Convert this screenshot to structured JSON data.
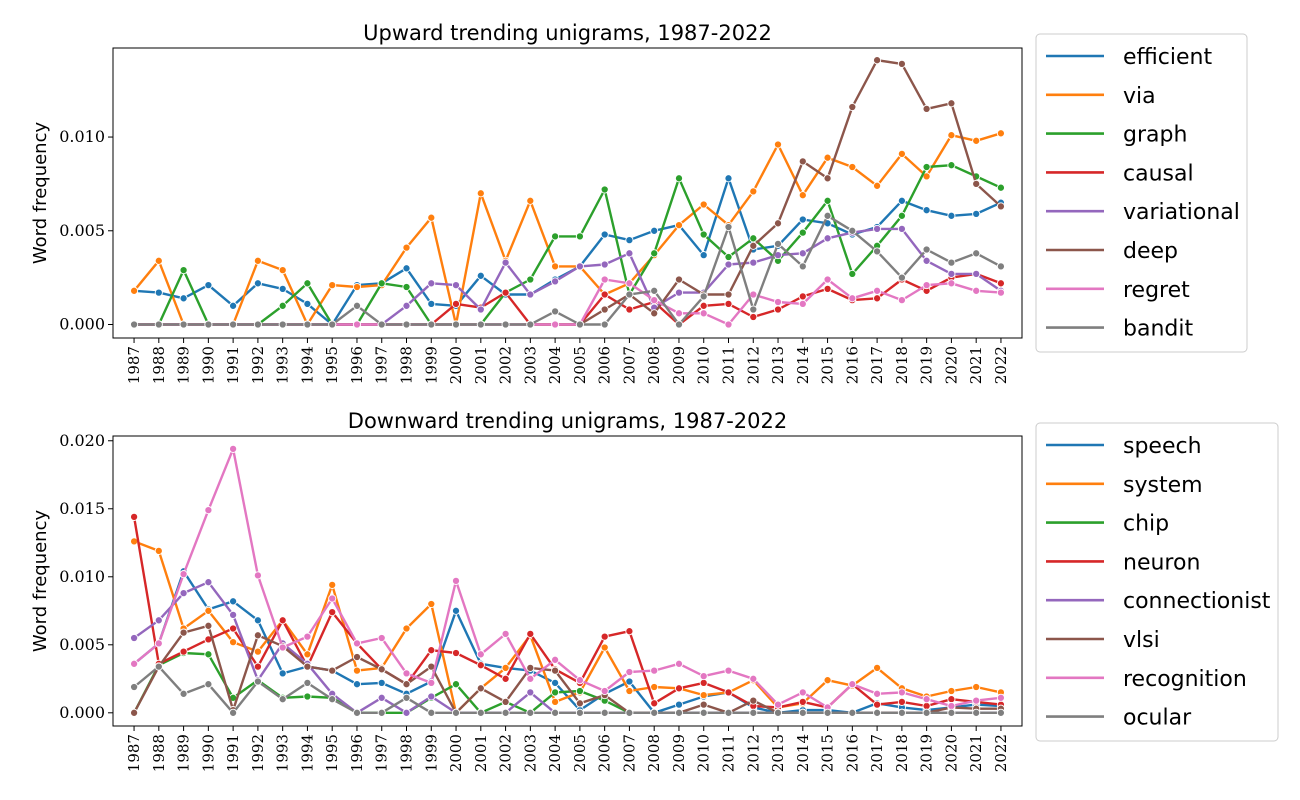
{
  "chart_data": [
    {
      "type": "line",
      "title": "Upward trending unigrams, 1987-2022",
      "xlabel": "",
      "ylabel": "Word frequency",
      "ylim": [
        -0.00072,
        0.01475
      ],
      "yticks": [
        0.0,
        0.005,
        0.01
      ],
      "ytick_labels": [
        "0.000",
        "0.005",
        "0.010"
      ],
      "legend_position": "outside-right",
      "x": [
        1987,
        1988,
        1989,
        1990,
        1991,
        1992,
        1993,
        1994,
        1995,
        1996,
        1997,
        1998,
        1999,
        2000,
        2001,
        2002,
        2003,
        2004,
        2005,
        2006,
        2007,
        2008,
        2009,
        2010,
        2011,
        2012,
        2013,
        2014,
        2015,
        2016,
        2017,
        2018,
        2019,
        2020,
        2021,
        2022
      ],
      "series": [
        {
          "name": "efficient",
          "color": "#1f77b4",
          "values": [
            0.0018,
            0.0017,
            0.0014,
            0.0021,
            0.001,
            0.0022,
            0.0019,
            0.0011,
            0.0,
            0.0021,
            0.0022,
            0.003,
            0.0011,
            0.001,
            0.0026,
            0.0016,
            0.0016,
            0.0024,
            0.0031,
            0.0048,
            0.0045,
            0.005,
            0.0053,
            0.0037,
            0.0078,
            0.004,
            0.0042,
            0.0056,
            0.0054,
            0.0048,
            0.0052,
            0.0066,
            0.0061,
            0.0058,
            0.0059,
            0.0065
          ]
        },
        {
          "name": "via",
          "color": "#ff7f0e",
          "values": [
            0.0018,
            0.0034,
            0.0,
            0.0,
            0.0,
            0.0034,
            0.0029,
            0.0,
            0.0021,
            0.002,
            0.0021,
            0.0041,
            0.0057,
            0.0,
            0.007,
            0.0034,
            0.0066,
            0.0031,
            0.0031,
            0.0016,
            0.0022,
            0.0037,
            0.0053,
            0.0064,
            0.0053,
            0.0071,
            0.0096,
            0.0069,
            0.0089,
            0.0084,
            0.0074,
            0.0091,
            0.0079,
            0.0101,
            0.0098,
            0.0102
          ]
        },
        {
          "name": "graph",
          "color": "#2ca02c",
          "values": [
            0.0,
            0.0,
            0.0029,
            0.0,
            0.0,
            0.0,
            0.001,
            0.0022,
            0.0,
            0.0,
            0.0022,
            0.002,
            0.0,
            0.0,
            0.0,
            0.0017,
            0.0024,
            0.0047,
            0.0047,
            0.0072,
            0.0016,
            0.0038,
            0.0078,
            0.0048,
            0.0036,
            0.0046,
            0.0034,
            0.0049,
            0.0066,
            0.0027,
            0.0042,
            0.0058,
            0.0084,
            0.0085,
            0.0079,
            0.0073
          ]
        },
        {
          "name": "causal",
          "color": "#d62728",
          "values": [
            0.0,
            0.0,
            0.0,
            0.0,
            0.0,
            0.0,
            0.0,
            0.0,
            0.0,
            0.0,
            0.0,
            0.0,
            0.0,
            0.0011,
            0.0009,
            0.0017,
            0.0,
            0.0,
            0.0,
            0.0016,
            0.0008,
            0.0012,
            0.0,
            0.001,
            0.0011,
            0.0004,
            0.0008,
            0.0015,
            0.0019,
            0.0013,
            0.0014,
            0.0024,
            0.0018,
            0.0025,
            0.0027,
            0.0022
          ]
        },
        {
          "name": "variational",
          "color": "#9467bd",
          "values": [
            0.0,
            0.0,
            0.0,
            0.0,
            0.0,
            0.0,
            0.0,
            0.0,
            0.0,
            0.0,
            0.0,
            0.001,
            0.0022,
            0.0021,
            0.0008,
            0.0033,
            0.0016,
            0.0023,
            0.0031,
            0.0032,
            0.0038,
            0.0009,
            0.0017,
            0.0017,
            0.0032,
            0.0033,
            0.0037,
            0.0038,
            0.0046,
            0.0049,
            0.0051,
            0.0051,
            0.0034,
            0.0027,
            0.0027,
            0.0018
          ]
        },
        {
          "name": "deep",
          "color": "#8c564b",
          "values": [
            0.0,
            0.0,
            0.0,
            0.0,
            0.0,
            0.0,
            0.0,
            0.0,
            0.0,
            0.0,
            0.0,
            0.0,
            0.0,
            0.0,
            0.0,
            0.0,
            0.0,
            0.0,
            0.0,
            0.0008,
            0.0016,
            0.0006,
            0.0024,
            0.0016,
            0.0016,
            0.0042,
            0.0054,
            0.0087,
            0.0078,
            0.0116,
            0.0141,
            0.0139,
            0.0115,
            0.0118,
            0.0075,
            0.0063
          ]
        },
        {
          "name": "regret",
          "color": "#e377c2",
          "values": [
            0.0,
            0.0,
            0.0,
            0.0,
            0.0,
            0.0,
            0.0,
            0.0,
            0.0,
            0.0,
            0.0,
            0.0,
            0.0,
            0.0,
            0.0,
            0.0,
            0.0,
            0.0,
            0.0,
            0.0024,
            0.0022,
            0.0013,
            0.0006,
            0.0006,
            0.0,
            0.0016,
            0.0012,
            0.0011,
            0.0024,
            0.0014,
            0.0018,
            0.0013,
            0.0021,
            0.0022,
            0.0018,
            0.0017
          ]
        },
        {
          "name": "bandit",
          "color": "#7f7f7f",
          "values": [
            0.0,
            0.0,
            0.0,
            0.0,
            0.0,
            0.0,
            0.0,
            0.0,
            0.0,
            0.001,
            0.0,
            0.0,
            0.0,
            0.0,
            0.0,
            0.0,
            0.0,
            0.0007,
            0.0,
            0.0,
            0.0016,
            0.0018,
            0.0,
            0.0015,
            0.0052,
            0.0008,
            0.0043,
            0.0031,
            0.0058,
            0.005,
            0.0039,
            0.0025,
            0.004,
            0.0033,
            0.0038,
            0.0031
          ]
        }
      ]
    },
    {
      "type": "line",
      "title": "Downward trending unigrams, 1987-2022",
      "xlabel": "",
      "ylabel": "Word frequency",
      "ylim": [
        -0.00097,
        0.02035
      ],
      "yticks": [
        0.0,
        0.005,
        0.01,
        0.015,
        0.02
      ],
      "ytick_labels": [
        "0.000",
        "0.005",
        "0.010",
        "0.015",
        "0.020"
      ],
      "legend_position": "outside-right",
      "x": [
        1987,
        1988,
        1989,
        1990,
        1991,
        1992,
        1993,
        1994,
        1995,
        1996,
        1997,
        1998,
        1999,
        2000,
        2001,
        2002,
        2003,
        2004,
        2005,
        2006,
        2007,
        2008,
        2009,
        2010,
        2011,
        2012,
        2013,
        2014,
        2015,
        2016,
        2017,
        2018,
        2019,
        2020,
        2021,
        2022
      ],
      "series": [
        {
          "name": "speech",
          "color": "#1f77b4",
          "values": [
            0.0036,
            0.0051,
            0.0104,
            0.0076,
            0.0082,
            0.0068,
            0.0029,
            0.0034,
            0.0031,
            0.0021,
            0.0022,
            0.0014,
            0.0023,
            0.0075,
            0.0036,
            0.0033,
            0.0031,
            0.0022,
            0.0002,
            0.0014,
            0.0023,
            0.0,
            0.0006,
            0.0012,
            0.0015,
            0.0004,
            0.0,
            0.0002,
            0.0002,
            0.0,
            0.0007,
            0.0004,
            0.0002,
            0.0004,
            0.0006,
            0.0005
          ]
        },
        {
          "name": "system",
          "color": "#ff7f0e",
          "values": [
            0.0126,
            0.0119,
            0.0062,
            0.0075,
            0.0052,
            0.0045,
            0.0068,
            0.0043,
            0.0094,
            0.0031,
            0.0033,
            0.0062,
            0.008,
            0.0,
            0.0018,
            0.0033,
            0.0057,
            0.0008,
            0.0015,
            0.0048,
            0.0016,
            0.0019,
            0.0018,
            0.0013,
            0.0015,
            0.0024,
            0.0004,
            0.0007,
            0.0024,
            0.002,
            0.0033,
            0.0018,
            0.0012,
            0.0016,
            0.0019,
            0.0015
          ]
        },
        {
          "name": "chip",
          "color": "#2ca02c",
          "values": [
            0.0,
            0.0035,
            0.0044,
            0.0043,
            0.0011,
            0.0024,
            0.0011,
            0.0012,
            0.0011,
            0.0,
            0.0,
            0.0,
            0.0011,
            0.0021,
            0.0,
            0.0008,
            0.0,
            0.0015,
            0.0016,
            0.0009,
            0.0,
            0.0,
            0.0,
            0.0,
            0.0,
            0.0,
            0.0,
            0.0,
            0.0,
            0.0,
            0.0,
            0.0,
            0.0,
            0.0,
            0.0,
            0.0
          ]
        },
        {
          "name": "neuron",
          "color": "#d62728",
          "values": [
            0.0144,
            0.0036,
            0.0045,
            0.0054,
            0.0062,
            0.0034,
            0.0068,
            0.0034,
            0.0074,
            0.0051,
            0.0032,
            0.0021,
            0.0046,
            0.0044,
            0.0035,
            0.0025,
            0.0058,
            0.0032,
            0.0022,
            0.0056,
            0.006,
            0.0007,
            0.0018,
            0.0022,
            0.0015,
            0.0005,
            0.0004,
            0.0008,
            0.0004,
            0.0021,
            0.0006,
            0.0008,
            0.0005,
            0.001,
            0.0008,
            0.0006
          ]
        },
        {
          "name": "connectionist",
          "color": "#9467bd",
          "values": [
            0.0055,
            0.0068,
            0.0088,
            0.0096,
            0.0072,
            0.0024,
            0.0051,
            0.0036,
            0.0014,
            0.0,
            0.0011,
            0.0,
            0.0012,
            0.0,
            0.0,
            0.0,
            0.0015,
            0.0,
            0.0,
            0.0,
            0.0,
            0.0,
            0.0,
            0.0,
            0.0,
            0.0,
            0.0,
            0.0,
            0.0,
            0.0,
            0.0,
            0.0,
            0.0,
            0.0,
            0.0,
            0.0
          ]
        },
        {
          "name": "vlsi",
          "color": "#8c564b",
          "values": [
            0.0,
            0.0034,
            0.0059,
            0.0064,
            0.0002,
            0.0057,
            0.0049,
            0.0034,
            0.0031,
            0.0041,
            0.0032,
            0.0021,
            0.0034,
            0.0,
            0.0018,
            0.0008,
            0.0033,
            0.0031,
            0.0007,
            0.0013,
            0.0,
            0.0,
            0.0,
            0.0006,
            0.0,
            0.0009,
            0.0,
            0.0,
            0.0,
            0.0,
            0.0,
            0.0,
            0.0,
            0.0004,
            0.0003,
            0.0003
          ]
        },
        {
          "name": "recognition",
          "color": "#e377c2",
          "values": [
            0.0036,
            0.0051,
            0.0102,
            0.0149,
            0.0194,
            0.0101,
            0.0048,
            0.0056,
            0.0084,
            0.0051,
            0.0055,
            0.0029,
            0.0022,
            0.0097,
            0.0043,
            0.0058,
            0.0025,
            0.0039,
            0.0024,
            0.0016,
            0.003,
            0.0031,
            0.0036,
            0.0027,
            0.0031,
            0.0025,
            0.0006,
            0.0015,
            0.0004,
            0.0021,
            0.0014,
            0.0015,
            0.001,
            0.0005,
            0.0009,
            0.0011
          ]
        },
        {
          "name": "ocular",
          "color": "#7f7f7f",
          "values": [
            0.0019,
            0.0034,
            0.0014,
            0.0021,
            0.0,
            0.0023,
            0.001,
            0.0022,
            0.001,
            0.0,
            0.0,
            0.0011,
            0.0,
            0.0,
            0.0,
            0.0,
            0.0,
            0.0,
            0.0,
            0.0,
            0.0,
            0.0,
            0.0,
            0.0,
            0.0,
            0.0,
            0.0,
            0.0,
            0.0,
            0.0,
            0.0,
            0.0,
            0.0,
            0.0,
            0.0,
            0.0
          ]
        }
      ]
    }
  ]
}
